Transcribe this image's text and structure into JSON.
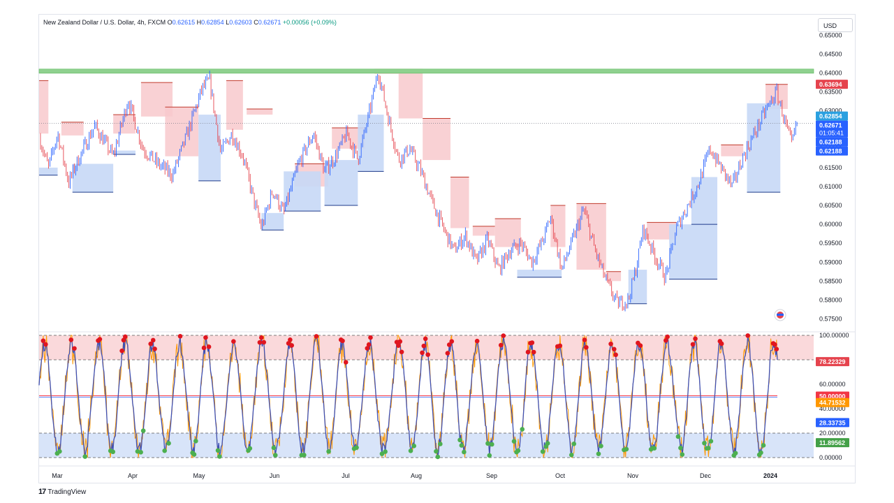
{
  "header": {
    "symbol": "New Zealand Dollar / U.S. Dollar, 4h, FXCM",
    "open_label": "O",
    "open": "0.62615",
    "high_label": "H",
    "high": "0.62854",
    "low_label": "L",
    "low": "0.62603",
    "close_label": "C",
    "close": "0.62671",
    "change": "+0.00056 (+0.09%)"
  },
  "currency_button": "USD",
  "branding": "TradingView",
  "colors": {
    "up": "#2962ff",
    "down": "#e5434d",
    "supply_zone": "#f8c9cc",
    "demand_zone": "#c7d8f6",
    "resistance": "#8fd18f",
    "osc_line": "#3f51b5",
    "osc_signal": "#ff9800"
  },
  "chart_data": [
    {
      "type": "candlestick",
      "symbol": "NZDUSD",
      "timeframe": "4h",
      "ylim": [
        0.5725,
        0.651
      ],
      "y_ticks": [
        "0.65000",
        "0.64500",
        "0.64000",
        "0.63500",
        "0.63000",
        "0.62500",
        "0.62000",
        "0.61500",
        "0.61000",
        "0.60500",
        "0.60000",
        "0.59500",
        "0.59000",
        "0.58500",
        "0.58000",
        "0.57500"
      ],
      "x_ticks": [
        "Mar",
        "Apr",
        "May",
        "Jun",
        "Jul",
        "Aug",
        "Sep",
        "Oct",
        "Nov",
        "Dec",
        "2024"
      ],
      "resistance_level": 0.6405,
      "price_path": [
        {
          "t": 0,
          "p": 0.623
        },
        {
          "t": 0.25,
          "p": 0.615
        },
        {
          "t": 0.5,
          "p": 0.624
        },
        {
          "t": 0.8,
          "p": 0.611
        },
        {
          "t": 1.0,
          "p": 0.616
        },
        {
          "t": 1.5,
          "p": 0.626
        },
        {
          "t": 2.0,
          "p": 0.618
        },
        {
          "t": 2.4,
          "p": 0.633
        },
        {
          "t": 2.8,
          "p": 0.62
        },
        {
          "t": 3.2,
          "p": 0.616
        },
        {
          "t": 3.6,
          "p": 0.613
        },
        {
          "t": 4.0,
          "p": 0.624
        },
        {
          "t": 4.4,
          "p": 0.636
        },
        {
          "t": 4.6,
          "p": 0.638
        },
        {
          "t": 4.9,
          "p": 0.619
        },
        {
          "t": 5.2,
          "p": 0.624
        },
        {
          "t": 5.5,
          "p": 0.618
        },
        {
          "t": 5.8,
          "p": 0.606
        },
        {
          "t": 6.0,
          "p": 0.599
        },
        {
          "t": 6.3,
          "p": 0.609
        },
        {
          "t": 6.6,
          "p": 0.603
        },
        {
          "t": 7.0,
          "p": 0.616
        },
        {
          "t": 7.4,
          "p": 0.624
        },
        {
          "t": 7.7,
          "p": 0.614
        },
        {
          "t": 8.0,
          "p": 0.618
        },
        {
          "t": 8.3,
          "p": 0.624
        },
        {
          "t": 8.6,
          "p": 0.617
        },
        {
          "t": 8.9,
          "p": 0.629
        },
        {
          "t": 9.15,
          "p": 0.6405
        },
        {
          "t": 9.4,
          "p": 0.629
        },
        {
          "t": 9.7,
          "p": 0.617
        },
        {
          "t": 10.0,
          "p": 0.62
        },
        {
          "t": 10.3,
          "p": 0.614
        },
        {
          "t": 10.6,
          "p": 0.606
        },
        {
          "t": 10.9,
          "p": 0.599
        },
        {
          "t": 11.2,
          "p": 0.593
        },
        {
          "t": 11.5,
          "p": 0.597
        },
        {
          "t": 11.8,
          "p": 0.59
        },
        {
          "t": 12.1,
          "p": 0.596
        },
        {
          "t": 12.4,
          "p": 0.588
        },
        {
          "t": 12.7,
          "p": 0.593
        },
        {
          "t": 13.0,
          "p": 0.595
        },
        {
          "t": 13.3,
          "p": 0.59
        },
        {
          "t": 13.6,
          "p": 0.596
        },
        {
          "t": 13.8,
          "p": 0.602
        },
        {
          "t": 14.1,
          "p": 0.588
        },
        {
          "t": 14.4,
          "p": 0.596
        },
        {
          "t": 14.7,
          "p": 0.604
        },
        {
          "t": 15.0,
          "p": 0.593
        },
        {
          "t": 15.3,
          "p": 0.585
        },
        {
          "t": 15.6,
          "p": 0.579
        },
        {
          "t": 15.9,
          "p": 0.58
        },
        {
          "t": 16.1,
          "p": 0.588
        },
        {
          "t": 16.3,
          "p": 0.599
        },
        {
          "t": 16.6,
          "p": 0.592
        },
        {
          "t": 16.9,
          "p": 0.586
        },
        {
          "t": 17.2,
          "p": 0.599
        },
        {
          "t": 17.5,
          "p": 0.605
        },
        {
          "t": 17.8,
          "p": 0.611
        },
        {
          "t": 18.1,
          "p": 0.62
        },
        {
          "t": 18.4,
          "p": 0.615
        },
        {
          "t": 18.7,
          "p": 0.61
        },
        {
          "t": 19.0,
          "p": 0.618
        },
        {
          "t": 19.3,
          "p": 0.624
        },
        {
          "t": 19.6,
          "p": 0.63
        },
        {
          "t": 19.9,
          "p": 0.635
        },
        {
          "t": 20.1,
          "p": 0.628
        },
        {
          "t": 20.3,
          "p": 0.621
        },
        {
          "t": 20.45,
          "p": 0.6267
        }
      ],
      "supply_zones": [
        {
          "t0": 0.0,
          "t1": 0.25,
          "top": 0.638,
          "bottom": 0.624
        },
        {
          "t0": 0.6,
          "t1": 1.2,
          "top": 0.627,
          "bottom": 0.6235
        },
        {
          "t0": 2.0,
          "t1": 2.6,
          "top": 0.629,
          "bottom": 0.624
        },
        {
          "t0": 2.75,
          "t1": 3.6,
          "top": 0.6375,
          "bottom": 0.6285
        },
        {
          "t0": 3.4,
          "t1": 4.3,
          "top": 0.631,
          "bottom": 0.618
        },
        {
          "t0": 5.05,
          "t1": 5.5,
          "top": 0.638,
          "bottom": 0.625
        },
        {
          "t0": 5.6,
          "t1": 6.3,
          "top": 0.6305,
          "bottom": 0.629
        },
        {
          "t0": 6.9,
          "t1": 7.8,
          "top": 0.616,
          "bottom": 0.61
        },
        {
          "t0": 7.9,
          "t1": 8.8,
          "top": 0.6255,
          "bottom": 0.62
        },
        {
          "t0": 9.05,
          "t1": 9.7,
          "top": 0.641,
          "bottom": 0.6398
        },
        {
          "t0": 9.7,
          "t1": 10.35,
          "top": 0.641,
          "bottom": 0.628
        },
        {
          "t0": 10.35,
          "t1": 11.1,
          "top": 0.628,
          "bottom": 0.617
        },
        {
          "t0": 11.1,
          "t1": 11.6,
          "top": 0.6125,
          "bottom": 0.599
        },
        {
          "t0": 11.7,
          "t1": 12.3,
          "top": 0.5995,
          "bottom": 0.597
        },
        {
          "t0": 12.3,
          "t1": 13.0,
          "top": 0.6015,
          "bottom": 0.594
        },
        {
          "t0": 13.8,
          "t1": 14.2,
          "top": 0.605,
          "bottom": 0.594
        },
        {
          "t0": 14.5,
          "t1": 15.3,
          "top": 0.6055,
          "bottom": 0.588
        },
        {
          "t0": 15.3,
          "t1": 15.7,
          "top": 0.5875,
          "bottom": 0.585
        },
        {
          "t0": 16.4,
          "t1": 17.2,
          "top": 0.6005,
          "bottom": 0.596
        },
        {
          "t0": 18.4,
          "t1": 19.0,
          "top": 0.621,
          "bottom": 0.618
        },
        {
          "t0": 19.6,
          "t1": 20.2,
          "top": 0.637,
          "bottom": 0.6305
        }
      ],
      "demand_zones": [
        {
          "t0": 0.0,
          "t1": 0.5,
          "top": 0.615,
          "bottom": 0.613
        },
        {
          "t0": 0.9,
          "t1": 2.0,
          "top": 0.616,
          "bottom": 0.6085
        },
        {
          "t0": 2.0,
          "t1": 2.6,
          "top": 0.6195,
          "bottom": 0.6185
        },
        {
          "t0": 4.3,
          "t1": 4.9,
          "top": 0.629,
          "bottom": 0.6115
        },
        {
          "t0": 6.0,
          "t1": 6.6,
          "top": 0.603,
          "bottom": 0.5985
        },
        {
          "t0": 6.6,
          "t1": 7.6,
          "top": 0.614,
          "bottom": 0.6035
        },
        {
          "t0": 7.7,
          "t1": 8.6,
          "top": 0.617,
          "bottom": 0.605
        },
        {
          "t0": 8.6,
          "t1": 9.3,
          "top": 0.629,
          "bottom": 0.614
        },
        {
          "t0": 12.9,
          "t1": 14.1,
          "top": 0.588,
          "bottom": 0.586
        },
        {
          "t0": 15.9,
          "t1": 16.4,
          "top": 0.588,
          "bottom": 0.579
        },
        {
          "t0": 17.0,
          "t1": 18.3,
          "top": 0.6,
          "bottom": 0.5855
        },
        {
          "t0": 17.6,
          "t1": 18.3,
          "top": 0.6125,
          "bottom": 0.6
        },
        {
          "t0": 19.1,
          "t1": 20.0,
          "top": 0.632,
          "bottom": 0.6085
        }
      ],
      "price_labels": [
        {
          "value": "0.63694",
          "y": 0.63694,
          "color": "#e5434d"
        },
        {
          "value": "0.62854",
          "y": 0.62854,
          "color": "#2aa0e0"
        },
        {
          "value": "0.62671",
          "y": 0.62671,
          "color": "#2962ff",
          "extra": "01:05:41"
        },
        {
          "value": "0.62188",
          "y": 0.62188,
          "color": "#2962ff"
        },
        {
          "value": "0.62188",
          "y": 0.62188,
          "color": "#2962ff"
        }
      ]
    },
    {
      "type": "line",
      "name": "oscillator",
      "ylim": [
        0,
        100
      ],
      "y_ticks": [
        "100.00000",
        "80.00000",
        "60.00000",
        "40.00000",
        "20.00000",
        "0.00000"
      ],
      "overbought": 80,
      "oversold": 20,
      "midline": 50,
      "value_labels": [
        {
          "value": "78.22329",
          "y": 78.22,
          "color": "#e5434d"
        },
        {
          "value": "50.00000",
          "y": 50.0,
          "color": "#f23645"
        },
        {
          "value": "44.71532",
          "y": 44.72,
          "color": "#ff9800"
        },
        {
          "value": "28.33735",
          "y": 28.34,
          "color": "#2962ff"
        },
        {
          "value": "11.89562",
          "y": 11.9,
          "color": "#43a047"
        }
      ]
    }
  ]
}
